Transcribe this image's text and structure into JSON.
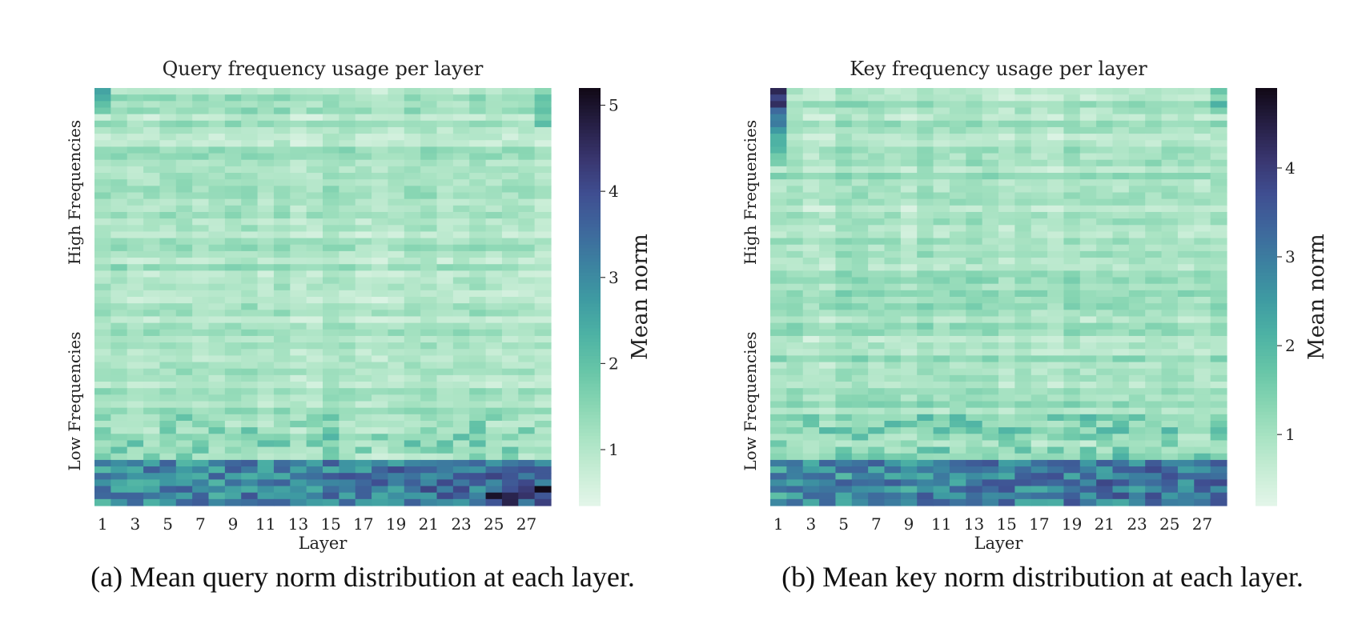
{
  "palette": [
    "#e5f6ea",
    "#c8edd6",
    "#a9e3c3",
    "#86d5b2",
    "#65c4a7",
    "#4cb1a4",
    "#3e9aa2",
    "#3c81a0",
    "#3e679c",
    "#3f4e91",
    "#39366f",
    "#261f45",
    "#120a18"
  ],
  "chart_data": [
    {
      "type": "heatmap",
      "title": "Query frequency usage per layer",
      "xlabel": "Layer",
      "ylabel": "",
      "x_ticks": [
        "1",
        "3",
        "5",
        "7",
        "9",
        "11",
        "13",
        "15",
        "17",
        "19",
        "21",
        "23",
        "25",
        "27"
      ],
      "y_labels": [
        "High Frequencies",
        "Low Frequencies"
      ],
      "n_layers": 28,
      "n_dims": 64,
      "colorbar": {
        "label": "Mean norm",
        "ticks": [
          1,
          2,
          3,
          4,
          5
        ],
        "vmin": 0.35,
        "vmax": 5.2
      },
      "summary": {
        "typical_value": 1.1,
        "bottom_band_typical": 2.6,
        "max_value": 5.2,
        "max_location": "layers 25-27, lowest rows"
      }
    },
    {
      "type": "heatmap",
      "title": "Key frequency usage per layer",
      "xlabel": "Layer",
      "ylabel": "",
      "x_ticks": [
        "1",
        "3",
        "5",
        "7",
        "9",
        "11",
        "13",
        "15",
        "17",
        "19",
        "21",
        "23",
        "25",
        "27"
      ],
      "y_labels": [
        "High Frequencies",
        "Low Frequencies"
      ],
      "n_layers": 28,
      "n_dims": 64,
      "colorbar": {
        "label": "Mean norm",
        "ticks": [
          1,
          2,
          3,
          4
        ],
        "vmin": 0.2,
        "vmax": 4.9
      },
      "summary": {
        "typical_value": 1.0,
        "bottom_band_typical": 2.3,
        "max_value": 4.9,
        "max_location": "layer 1, top row"
      }
    }
  ],
  "captions": {
    "a": "(a) Mean query norm distribution at each layer.",
    "b": "(b) Mean key norm distribution at each layer."
  }
}
